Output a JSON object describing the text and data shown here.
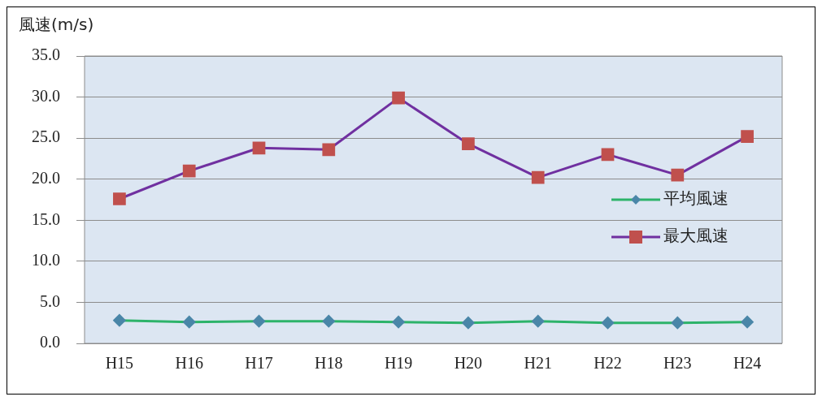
{
  "chart_data": {
    "type": "line",
    "ylabel": "風速(m/s)",
    "categories": [
      "H15",
      "H16",
      "H17",
      "H18",
      "H19",
      "H20",
      "H21",
      "H22",
      "H23",
      "H24"
    ],
    "series": [
      {
        "name": "平均風速",
        "color": "#2db36a",
        "colors": [
          "#4a86a8",
          "#4a86a8",
          "#4a86a8",
          "#4a86a8",
          "#4a86a8",
          "#4a86a8",
          "#4a86a8",
          "#4a86a8",
          "#4a86a8",
          "#4a86a8"
        ],
        "marker": "diamond",
        "values": [
          2.8,
          2.6,
          2.7,
          2.7,
          2.6,
          2.5,
          2.7,
          2.5,
          2.5,
          2.6
        ]
      },
      {
        "name": "最大風速",
        "color": "#7030a0",
        "colors": [
          "#c0504d",
          "#c0504d",
          "#c0504d",
          "#c0504d",
          "#c0504d",
          "#c0504d",
          "#c0504d",
          "#c0504d",
          "#c0504d",
          "#c0504d"
        ],
        "marker": "square",
        "values": [
          17.6,
          21.0,
          23.8,
          23.6,
          29.9,
          24.3,
          20.2,
          23.0,
          20.5,
          25.2
        ]
      }
    ],
    "ylim": [
      0,
      35
    ],
    "yticks": [
      {
        "value": 0,
        "label": "0.0"
      },
      {
        "value": 5,
        "label": "5.0"
      },
      {
        "value": 10,
        "label": "10.0"
      },
      {
        "value": 15,
        "label": "15.0"
      },
      {
        "value": 20,
        "label": "20.0"
      },
      {
        "value": 25,
        "label": "25.0"
      },
      {
        "value": 30,
        "label": "30.0"
      },
      {
        "value": 35,
        "label": "35.0"
      }
    ],
    "grid": "y",
    "legend": "right",
    "line_style": "solid"
  }
}
